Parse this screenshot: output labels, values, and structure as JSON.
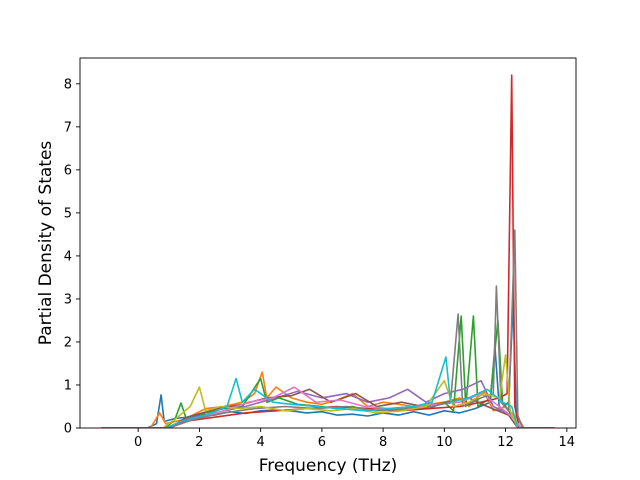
{
  "chart_data": {
    "type": "line",
    "title": "",
    "xlabel": "Frequency (THz)",
    "ylabel": "Partial Density of States",
    "xlim": [
      -1.9,
      14.3
    ],
    "ylim": [
      0,
      8.6
    ],
    "xticks": [
      0,
      2,
      4,
      6,
      8,
      10,
      12,
      14
    ],
    "xtick_labels": [
      "0",
      "2",
      "4",
      "6",
      "8",
      "10",
      "12",
      "14"
    ],
    "yticks": [
      0,
      1,
      2,
      3,
      4,
      5,
      6,
      7,
      8
    ],
    "ytick_labels": [
      "0",
      "1",
      "2",
      "3",
      "4",
      "5",
      "6",
      "7",
      "8"
    ],
    "grid": false,
    "legend": "none",
    "series": [
      {
        "color": "#1f77b4",
        "points": [
          [
            -1.2,
            0
          ],
          [
            0.3,
            0
          ],
          [
            0.6,
            0.1
          ],
          [
            0.75,
            0.77
          ],
          [
            0.85,
            0.15
          ],
          [
            1.2,
            0.22
          ],
          [
            1.6,
            0.25
          ],
          [
            2.0,
            0.3
          ],
          [
            2.5,
            0.3
          ],
          [
            3,
            0.38
          ],
          [
            3.5,
            0.34
          ],
          [
            4,
            0.4
          ],
          [
            4.5,
            0.42
          ],
          [
            5,
            0.4
          ],
          [
            5.5,
            0.35
          ],
          [
            6,
            0.38
          ],
          [
            6.5,
            0.3
          ],
          [
            7,
            0.32
          ],
          [
            7.5,
            0.28
          ],
          [
            8,
            0.35
          ],
          [
            8.5,
            0.3
          ],
          [
            9,
            0.38
          ],
          [
            9.5,
            0.3
          ],
          [
            10,
            0.4
          ],
          [
            10.5,
            0.35
          ],
          [
            11,
            0.45
          ],
          [
            11.5,
            0.6
          ],
          [
            11.65,
            1.9
          ],
          [
            11.8,
            0.4
          ],
          [
            12.1,
            0.6
          ],
          [
            12.25,
            2.9
          ],
          [
            12.35,
            0.3
          ],
          [
            12.6,
            0
          ],
          [
            13.6,
            0
          ]
        ]
      },
      {
        "color": "#ff7f0e",
        "points": [
          [
            -1.2,
            0
          ],
          [
            0.4,
            0
          ],
          [
            0.7,
            0.35
          ],
          [
            0.9,
            0.1
          ],
          [
            1.5,
            0.2
          ],
          [
            2.2,
            0.45
          ],
          [
            2.8,
            0.5
          ],
          [
            3.4,
            0.6
          ],
          [
            3.8,
            0.8
          ],
          [
            4.05,
            1.3
          ],
          [
            4.2,
            0.7
          ],
          [
            4.5,
            0.95
          ],
          [
            5,
            0.7
          ],
          [
            5.5,
            0.6
          ],
          [
            6,
            0.55
          ],
          [
            6.5,
            0.65
          ],
          [
            7,
            0.8
          ],
          [
            7.5,
            0.5
          ],
          [
            8,
            0.6
          ],
          [
            8.5,
            0.55
          ],
          [
            9,
            0.5
          ],
          [
            9.5,
            0.55
          ],
          [
            10,
            0.6
          ],
          [
            10.5,
            0.7
          ],
          [
            10.8,
            0.5
          ],
          [
            11.3,
            0.85
          ],
          [
            11.6,
            0.4
          ],
          [
            12,
            0.5
          ],
          [
            12.4,
            0.2
          ],
          [
            12.6,
            0
          ],
          [
            13.6,
            0
          ]
        ]
      },
      {
        "color": "#2ca02c",
        "points": [
          [
            -1.2,
            0
          ],
          [
            0.9,
            0
          ],
          [
            1.2,
            0.2
          ],
          [
            1.4,
            0.58
          ],
          [
            1.6,
            0.15
          ],
          [
            2.2,
            0.35
          ],
          [
            2.8,
            0.45
          ],
          [
            3.4,
            0.5
          ],
          [
            4.0,
            1.15
          ],
          [
            4.2,
            0.6
          ],
          [
            4.6,
            0.7
          ],
          [
            5.2,
            0.55
          ],
          [
            6,
            0.5
          ],
          [
            6.5,
            0.45
          ],
          [
            7,
            0.5
          ],
          [
            7.5,
            0.4
          ],
          [
            8,
            0.45
          ],
          [
            8.5,
            0.4
          ],
          [
            9,
            0.5
          ],
          [
            9.5,
            0.45
          ],
          [
            10,
            0.6
          ],
          [
            10.3,
            0.4
          ],
          [
            10.55,
            2.6
          ],
          [
            10.7,
            0.5
          ],
          [
            10.95,
            2.6
          ],
          [
            11.1,
            0.5
          ],
          [
            11.5,
            0.7
          ],
          [
            11.75,
            2.5
          ],
          [
            11.9,
            0.6
          ],
          [
            12.2,
            0.3
          ],
          [
            12.5,
            0
          ],
          [
            13.6,
            0
          ]
        ]
      },
      {
        "color": "#d62728",
        "points": [
          [
            -1.2,
            0
          ],
          [
            0.9,
            0
          ],
          [
            1.5,
            0.15
          ],
          [
            2.5,
            0.25
          ],
          [
            3.5,
            0.35
          ],
          [
            4.5,
            0.4
          ],
          [
            5.5,
            0.45
          ],
          [
            6.5,
            0.5
          ],
          [
            7.5,
            0.45
          ],
          [
            8.5,
            0.4
          ],
          [
            9.5,
            0.45
          ],
          [
            10.5,
            0.5
          ],
          [
            11.2,
            0.6
          ],
          [
            11.8,
            0.7
          ],
          [
            12.05,
            0.8
          ],
          [
            12.2,
            8.2
          ],
          [
            12.3,
            0.5
          ],
          [
            12.45,
            0
          ],
          [
            13.6,
            0
          ]
        ]
      },
      {
        "color": "#9467bd",
        "points": [
          [
            -1.2,
            0
          ],
          [
            1.0,
            0
          ],
          [
            1.5,
            0.2
          ],
          [
            2.5,
            0.35
          ],
          [
            3.5,
            0.5
          ],
          [
            4.5,
            0.7
          ],
          [
            5.2,
            0.85
          ],
          [
            6,
            0.7
          ],
          [
            6.8,
            0.8
          ],
          [
            7.5,
            0.6
          ],
          [
            8.2,
            0.7
          ],
          [
            8.8,
            0.9
          ],
          [
            9.4,
            0.6
          ],
          [
            10,
            0.8
          ],
          [
            10.6,
            0.9
          ],
          [
            11.2,
            1.1
          ],
          [
            11.6,
            0.5
          ],
          [
            12.2,
            0.3
          ],
          [
            12.5,
            0
          ],
          [
            13.6,
            0
          ]
        ]
      },
      {
        "color": "#8c564b",
        "points": [
          [
            -1.2,
            0
          ],
          [
            1.0,
            0
          ],
          [
            1.6,
            0.25
          ],
          [
            2.6,
            0.45
          ],
          [
            3.4,
            0.55
          ],
          [
            4.2,
            0.7
          ],
          [
            5.0,
            0.75
          ],
          [
            5.6,
            0.9
          ],
          [
            6.3,
            0.6
          ],
          [
            7.1,
            0.8
          ],
          [
            7.8,
            0.5
          ],
          [
            8.6,
            0.6
          ],
          [
            9.3,
            0.5
          ],
          [
            10.1,
            0.6
          ],
          [
            10.8,
            0.7
          ],
          [
            11.4,
            0.5
          ],
          [
            12.1,
            0.3
          ],
          [
            12.4,
            0
          ],
          [
            13.6,
            0
          ]
        ]
      },
      {
        "color": "#e377c2",
        "points": [
          [
            -1.2,
            0
          ],
          [
            1.0,
            0
          ],
          [
            1.8,
            0.2
          ],
          [
            2.8,
            0.4
          ],
          [
            3.6,
            0.6
          ],
          [
            4.4,
            0.7
          ],
          [
            5.1,
            0.95
          ],
          [
            5.8,
            0.6
          ],
          [
            6.6,
            0.65
          ],
          [
            7.4,
            0.5
          ],
          [
            8.2,
            0.45
          ],
          [
            9.0,
            0.5
          ],
          [
            9.8,
            0.55
          ],
          [
            10.5,
            0.6
          ],
          [
            11.2,
            0.8
          ],
          [
            11.8,
            0.5
          ],
          [
            12.3,
            0.2
          ],
          [
            12.5,
            0
          ],
          [
            13.6,
            0
          ]
        ]
      },
      {
        "color": "#7f7f7f",
        "points": [
          [
            -1.2,
            0
          ],
          [
            1.0,
            0
          ],
          [
            1.8,
            0.2
          ],
          [
            2.8,
            0.35
          ],
          [
            3.8,
            0.45
          ],
          [
            4.8,
            0.5
          ],
          [
            5.8,
            0.45
          ],
          [
            6.8,
            0.5
          ],
          [
            7.8,
            0.4
          ],
          [
            8.8,
            0.45
          ],
          [
            9.6,
            0.5
          ],
          [
            10.2,
            0.6
          ],
          [
            10.45,
            2.65
          ],
          [
            10.6,
            0.5
          ],
          [
            11.2,
            0.7
          ],
          [
            11.6,
            0.8
          ],
          [
            11.7,
            3.3
          ],
          [
            11.85,
            0.6
          ],
          [
            12.1,
            0.4
          ],
          [
            12.3,
            4.6
          ],
          [
            12.4,
            0.3
          ],
          [
            12.55,
            0
          ],
          [
            13.6,
            0
          ]
        ]
      },
      {
        "color": "#bcbd22",
        "points": [
          [
            -1.2,
            0
          ],
          [
            0.8,
            0
          ],
          [
            1.2,
            0.2
          ],
          [
            1.7,
            0.5
          ],
          [
            2.0,
            0.95
          ],
          [
            2.2,
            0.4
          ],
          [
            2.7,
            0.5
          ],
          [
            3.3,
            0.45
          ],
          [
            4,
            0.5
          ],
          [
            4.8,
            0.4
          ],
          [
            5.5,
            0.45
          ],
          [
            6.3,
            0.4
          ],
          [
            7,
            0.45
          ],
          [
            7.8,
            0.35
          ],
          [
            8.6,
            0.4
          ],
          [
            9.4,
            0.5
          ],
          [
            10,
            1.1
          ],
          [
            10.3,
            0.5
          ],
          [
            10.8,
            0.6
          ],
          [
            11.3,
            0.8
          ],
          [
            11.8,
            0.7
          ],
          [
            12.0,
            1.7
          ],
          [
            12.15,
            0.4
          ],
          [
            12.4,
            0
          ],
          [
            13.6,
            0
          ]
        ]
      },
      {
        "color": "#17becf",
        "points": [
          [
            -1.2,
            0
          ],
          [
            0.9,
            0
          ],
          [
            1.4,
            0.15
          ],
          [
            2.2,
            0.3
          ],
          [
            2.9,
            0.5
          ],
          [
            3.2,
            1.15
          ],
          [
            3.4,
            0.6
          ],
          [
            3.8,
            0.9
          ],
          [
            4.4,
            0.6
          ],
          [
            5,
            0.55
          ],
          [
            5.8,
            0.5
          ],
          [
            6.6,
            0.45
          ],
          [
            7.4,
            0.4
          ],
          [
            8.2,
            0.45
          ],
          [
            9,
            0.5
          ],
          [
            9.6,
            0.6
          ],
          [
            10.05,
            1.65
          ],
          [
            10.2,
            0.6
          ],
          [
            10.8,
            0.7
          ],
          [
            11.4,
            0.9
          ],
          [
            11.9,
            0.6
          ],
          [
            12.2,
            0.5
          ],
          [
            12.4,
            0
          ],
          [
            13.6,
            0
          ]
        ]
      }
    ]
  }
}
